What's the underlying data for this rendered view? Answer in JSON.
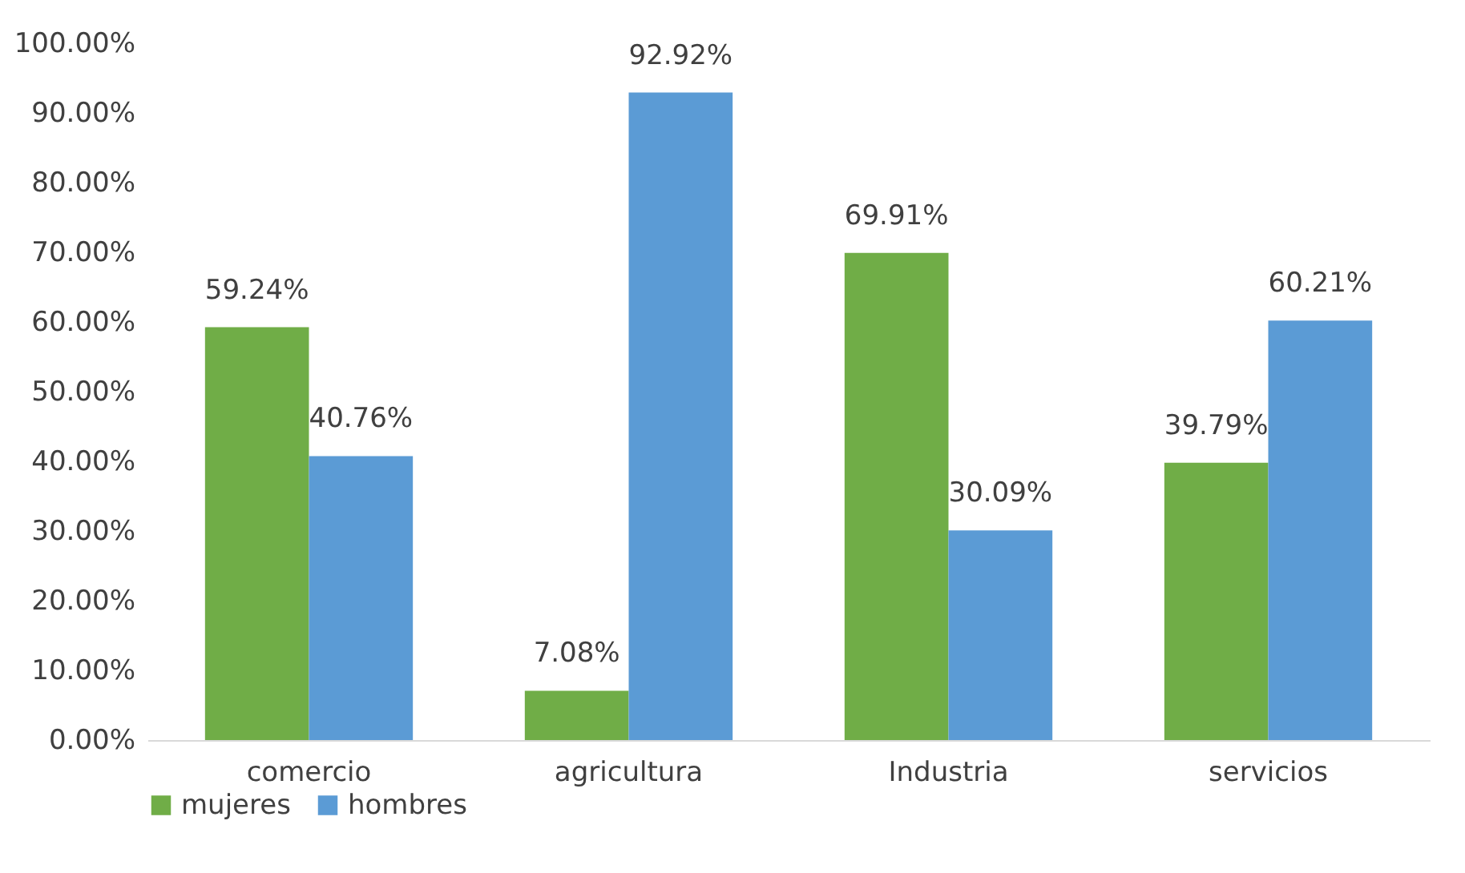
{
  "chart_data": {
    "type": "bar",
    "categories": [
      "comercio",
      "agricultura",
      "Industria",
      "servicios"
    ],
    "series": [
      {
        "name": "mujeres",
        "color": "#70ad47",
        "values": [
          59.24,
          7.08,
          69.91,
          39.79
        ],
        "value_labels": [
          "59.24%",
          "7.08%",
          "69.91%",
          "39.79%"
        ]
      },
      {
        "name": "hombres",
        "color": "#5b9bd5",
        "values": [
          40.76,
          92.92,
          30.09,
          60.21
        ],
        "value_labels": [
          "40.76%",
          "92.92%",
          "30.09%",
          "60.21%"
        ]
      }
    ],
    "ylim": [
      0,
      100
    ],
    "yticks": [
      {
        "value": 0,
        "label": "0.00%"
      },
      {
        "value": 10,
        "label": "10.00%"
      },
      {
        "value": 20,
        "label": "20.00%"
      },
      {
        "value": 30,
        "label": "30.00%"
      },
      {
        "value": 40,
        "label": "40.00%"
      },
      {
        "value": 50,
        "label": "50.00%"
      },
      {
        "value": 60,
        "label": "60.00%"
      },
      {
        "value": 70,
        "label": "70.00%"
      },
      {
        "value": 80,
        "label": "80.00%"
      },
      {
        "value": 90,
        "label": "90.00%"
      },
      {
        "value": 100,
        "label": "100.00%"
      }
    ],
    "grid": false,
    "legend": "bottom"
  }
}
